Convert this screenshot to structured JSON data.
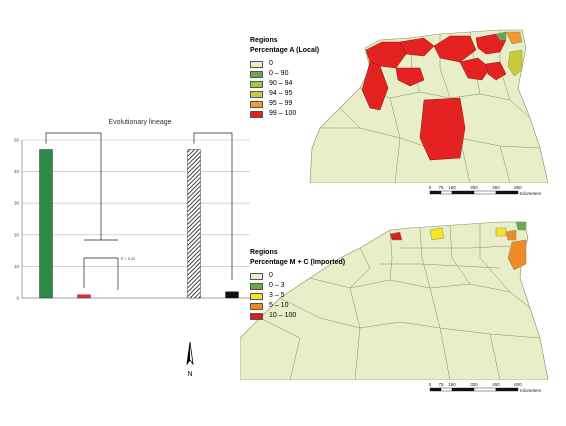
{
  "chart_data": {
    "type": "bar",
    "title": "Evolutionary lineage",
    "xlabel": "",
    "ylabel": "",
    "ytick_labels": [
      "0",
      "10",
      "20",
      "30",
      "40",
      "50"
    ],
    "ylim": [
      0,
      50
    ],
    "grid": true,
    "categories": [
      "",
      "",
      "",
      "",
      "",
      ""
    ],
    "values": [
      47,
      1,
      0,
      0,
      47,
      2
    ],
    "bar_colors": [
      "#2e8b47",
      "#e03030",
      "#ffffff",
      "#ffffff",
      "hatched",
      "#111111"
    ],
    "bar_labels": [
      "",
      "",
      "",
      "",
      "",
      ""
    ],
    "annotations": [
      "",
      "P = 0.22",
      ""
    ]
  },
  "maps": [
    {
      "legend_title": "Regions",
      "legend_subtitle": "Percentage A (Local)",
      "legend": [
        {
          "label": "0",
          "color": "#e8eec8"
        },
        {
          "label": "0 – 90",
          "color": "#6aa84f"
        },
        {
          "label": "90 – 94",
          "color": "#a3c93a"
        },
        {
          "label": "94 – 95",
          "color": "#c9cc3a"
        },
        {
          "label": "95 – 99",
          "color": "#f29a2e"
        },
        {
          "label": "99 – 100",
          "color": "#e52222"
        }
      ],
      "scale_labels": [
        "0",
        "75",
        "150",
        "300",
        "450",
        "600"
      ],
      "scale_unit": "Kilometers"
    },
    {
      "legend_title": "Regions",
      "legend_subtitle": "Percentage M + C (Imported)",
      "legend": [
        {
          "label": "0",
          "color": "#e8eec8"
        },
        {
          "label": "0 – 3",
          "color": "#6aa84f"
        },
        {
          "label": "3 – 5",
          "color": "#f2e622"
        },
        {
          "label": "5 – 10",
          "color": "#f08a26"
        },
        {
          "label": "10 – 100",
          "color": "#d42020"
        }
      ],
      "scale_labels": [
        "0",
        "75",
        "150",
        "300",
        "450",
        "600"
      ],
      "scale_unit": "Kilometers"
    }
  ],
  "north_arrow_label": "N",
  "colors": {
    "land": "#e8eec8",
    "border": "#8a8a6a"
  }
}
